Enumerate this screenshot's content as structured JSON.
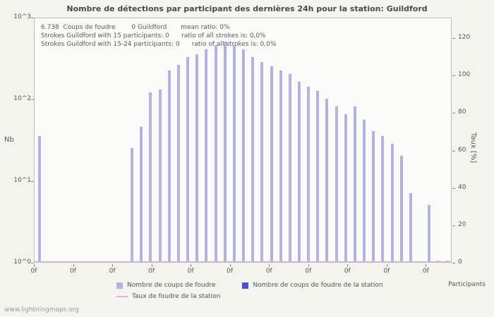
{
  "title": "Nombre de détections par participant des dernières 24h pour la station: Guildford",
  "annotation": {
    "line1": "6.738  Coups de foudre        0 Guildford       mean ratio: 0%",
    "line2": "Strokes Guildford with 15 participants: 0      ratio of all strokes is: 0,0%",
    "line3": "Strokes Guildford with 15-24 participants: 0      ratio of all strokes is: 0,0%"
  },
  "axes": {
    "left_title": "Nb",
    "right_title": "Taux [%]",
    "x_title": "Participants"
  },
  "legend": [
    {
      "label": "Nombre de coups de foudre",
      "color": "#b2b2e8",
      "type": "square"
    },
    {
      "label": "Nombre de coups de foudre de la station",
      "color": "#5050cc",
      "type": "square"
    },
    {
      "label": "Taux de foudre de la station",
      "color": "#f0a8d8",
      "type": "line"
    }
  ],
  "footer": "www.lightningmaps.org",
  "chart_data": {
    "type": "bar",
    "title": "Nombre de détections par participant des dernières 24h pour la station: Guildford",
    "xlabel": "Participants",
    "ylabel_left": "Nb",
    "ylabel_right": "Taux [%]",
    "y_left_scale": "log",
    "y_left_range": [
      1,
      1000
    ],
    "y_left_ticks": [
      "10^3",
      "10^2",
      "10^1",
      "10^0"
    ],
    "y_right_range": [
      0,
      131
    ],
    "y_right_ticks": [
      120,
      100,
      80,
      60,
      40,
      20,
      0
    ],
    "x_tick_label": "0f",
    "x_tick_count": 11,
    "x_participants": [
      1,
      2,
      3,
      4,
      5,
      6,
      7,
      8,
      9,
      10,
      11,
      12,
      13,
      14,
      15,
      16,
      17,
      18,
      19,
      20,
      21,
      22,
      23,
      24,
      25,
      26,
      27,
      28,
      29,
      30,
      31,
      32,
      33,
      34,
      35,
      36,
      37,
      38,
      39,
      40,
      41,
      42,
      43,
      44,
      45
    ],
    "values": [
      35,
      0,
      0,
      0,
      0,
      0,
      0,
      0,
      0,
      0,
      25,
      45,
      120,
      130,
      220,
      260,
      320,
      350,
      400,
      450,
      500,
      450,
      400,
      320,
      280,
      250,
      220,
      200,
      160,
      140,
      125,
      100,
      80,
      65,
      80,
      55,
      40,
      35,
      28,
      20,
      7,
      0,
      5,
      1,
      1
    ],
    "station_values": [
      0,
      0,
      0,
      0,
      0,
      0,
      0,
      0,
      0,
      0,
      0,
      0,
      0,
      0,
      0,
      0,
      0,
      0,
      0,
      0,
      0,
      0,
      0,
      0,
      0,
      0,
      0,
      0,
      0,
      0,
      0,
      0,
      0,
      0,
      0,
      0,
      0,
      0,
      0,
      0,
      0,
      0,
      0,
      0,
      0
    ],
    "rate_line_percent": 0,
    "bar_color": "#b2b2e8",
    "total_strokes_label": "6.738",
    "station_strokes": 0,
    "mean_ratio_percent": 0,
    "legend_position": "bottom",
    "grid": false
  }
}
